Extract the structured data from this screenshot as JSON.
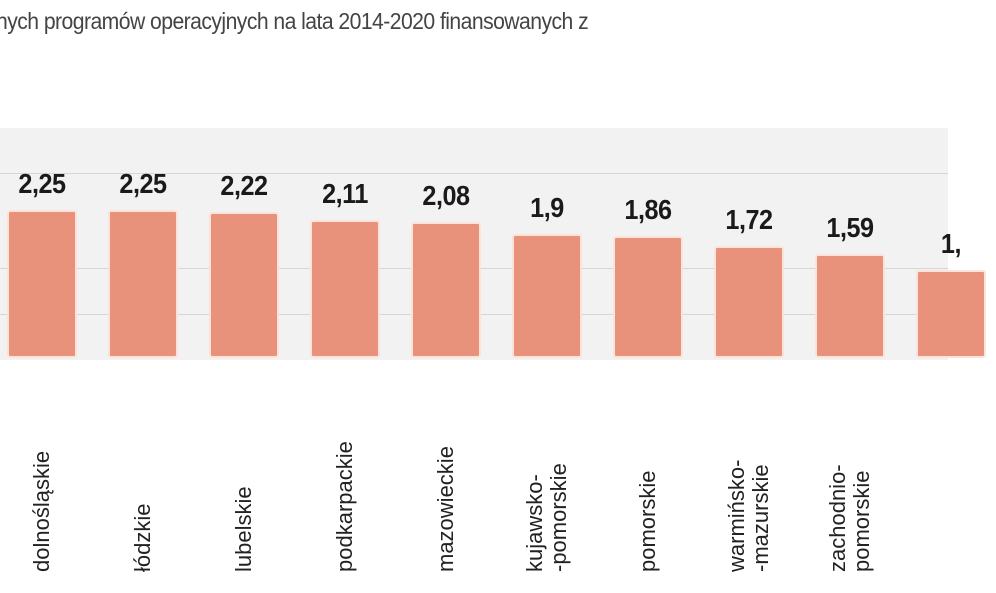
{
  "title": "nych programów operacyjnych na lata 2014-2020 finansowanych z",
  "chart_data": {
    "type": "bar",
    "categories": [
      "dolnośląskie",
      "łódzkie",
      "lubelskie",
      "podkarpackie",
      "mazowieckie",
      "kujawsko-\n-pomorskie",
      "pomorskie",
      "warmińsko-\n-mazurskie",
      "zachodnio-\npomorskie",
      ""
    ],
    "values": [
      2.25,
      2.25,
      2.22,
      2.11,
      2.08,
      1.9,
      1.86,
      1.72,
      1.59,
      1.35
    ],
    "data_labels": [
      "2,25",
      "2,25",
      "2,22",
      "2,11",
      "2,08",
      "1,9",
      "1,86",
      "1,72",
      "1,59",
      "1,"
    ],
    "bar_color": "#e8927c",
    "grid": true,
    "ylim": [
      0,
      2.4
    ]
  }
}
